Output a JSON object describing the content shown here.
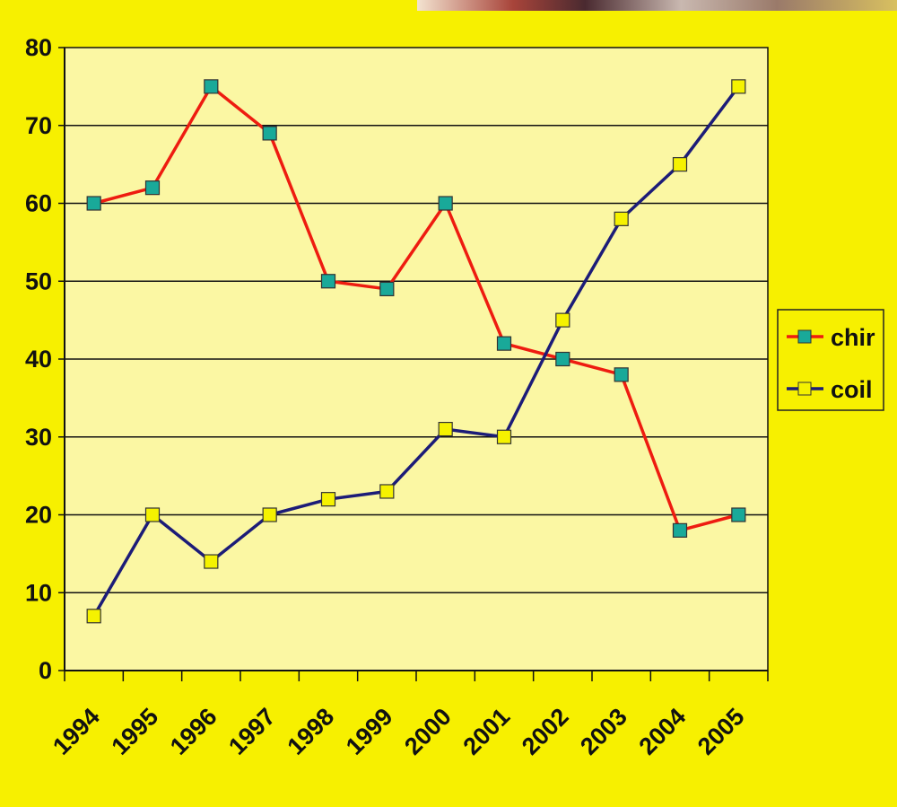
{
  "chart_data": {
    "type": "line",
    "title": "",
    "xlabel": "",
    "ylabel": "",
    "x": [
      "1994",
      "1995",
      "1996",
      "1997",
      "1998",
      "1999",
      "2000",
      "2001",
      "2002",
      "2003",
      "2004",
      "2005"
    ],
    "ylim": [
      0,
      80
    ],
    "yticks": [
      "0",
      "10",
      "20",
      "30",
      "40",
      "50",
      "60",
      "70",
      "80"
    ],
    "grid": "horizontal",
    "legend_position": "right",
    "series": [
      {
        "name": "chir",
        "color": "#ee1c10",
        "marker": "square",
        "marker_color": "#19a999",
        "values": [
          60,
          62,
          75,
          69,
          50,
          49,
          60,
          42,
          40,
          38,
          18,
          20
        ]
      },
      {
        "name": "coil",
        "color": "#1c1c78",
        "marker": "square",
        "marker_color": "#f5f200",
        "values": [
          7,
          20,
          14,
          20,
          22,
          23,
          31,
          30,
          45,
          58,
          65,
          75
        ]
      }
    ],
    "colors": {
      "background": "#f7f000",
      "plot_area": "#fbf7a3",
      "gridline": "#111111"
    }
  }
}
